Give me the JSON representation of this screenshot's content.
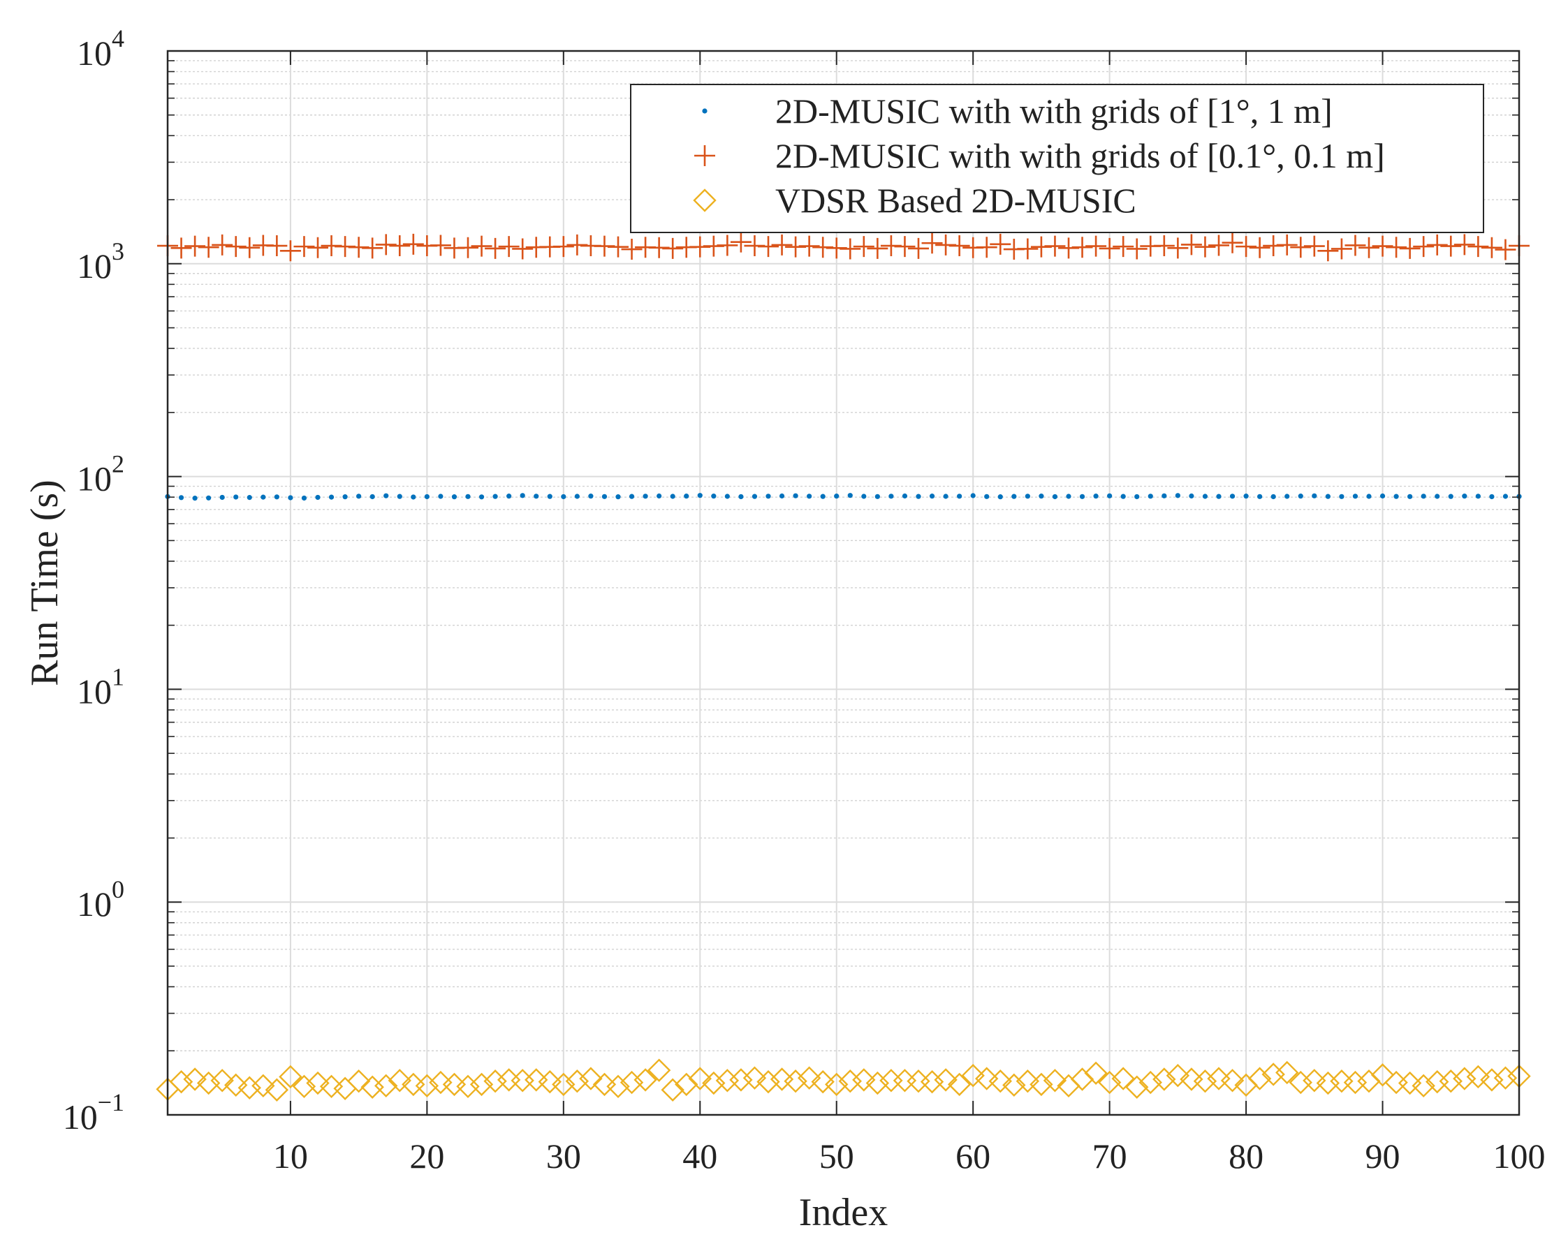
{
  "chart_data": {
    "type": "scatter",
    "xlabel": "Index",
    "ylabel": "Run Time (s)",
    "xlim": [
      1,
      100
    ],
    "ylim": [
      0.1,
      10000
    ],
    "yscale": "log",
    "grid": "on (major and minor)",
    "legend_placement": "top-right",
    "x_ticks": [
      {
        "value": 10,
        "label": "10"
      },
      {
        "value": 20,
        "label": "20"
      },
      {
        "value": 30,
        "label": "30"
      },
      {
        "value": 40,
        "label": "40"
      },
      {
        "value": 50,
        "label": "50"
      },
      {
        "value": 60,
        "label": "60"
      },
      {
        "value": 70,
        "label": "70"
      },
      {
        "value": 80,
        "label": "80"
      },
      {
        "value": 90,
        "label": "90"
      },
      {
        "value": 100,
        "label": "100"
      }
    ],
    "y_ticks": [
      {
        "value": 0.1,
        "base": "10",
        "exp": "−1"
      },
      {
        "value": 1,
        "base": "10",
        "exp": "0"
      },
      {
        "value": 10,
        "base": "10",
        "exp": "1"
      },
      {
        "value": 100,
        "base": "10",
        "exp": "2"
      },
      {
        "value": 1000,
        "base": "10",
        "exp": "3"
      },
      {
        "value": 10000,
        "base": "10",
        "exp": "4"
      }
    ],
    "series": [
      {
        "name": "2D-MUSIC with with grids of [1°, 1 m]",
        "marker": "dot",
        "color": "#0072bd",
        "values": [
          80.5,
          79.6,
          79.1,
          79.3,
          79.8,
          80.1,
          79.7,
          80.0,
          80.2,
          79.5,
          79.2,
          79.8,
          80.0,
          80.3,
          80.8,
          80.4,
          81.2,
          80.6,
          80.1,
          80.4,
          80.7,
          80.3,
          80.5,
          80.2,
          80.6,
          80.9,
          81.4,
          80.8,
          80.6,
          80.4,
          80.7,
          80.9,
          80.5,
          80.3,
          80.6,
          80.8,
          81.0,
          80.7,
          80.9,
          81.5,
          80.9,
          80.7,
          80.4,
          80.6,
          80.8,
          81.0,
          81.2,
          80.8,
          80.6,
          80.9,
          81.5,
          80.7,
          80.5,
          80.8,
          81.0,
          80.6,
          80.9,
          80.7,
          80.8,
          81.3,
          80.5,
          80.3,
          80.6,
          80.8,
          80.9,
          80.4,
          80.7,
          80.5,
          80.9,
          81.1,
          80.6,
          80.4,
          80.8,
          81.1,
          81.4,
          81.0,
          80.7,
          80.6,
          80.8,
          80.9,
          80.5,
          80.4,
          80.7,
          80.9,
          81.1,
          80.6,
          80.5,
          80.8,
          80.7,
          81.0,
          80.6,
          80.5,
          80.8,
          80.7,
          80.6,
          80.9,
          80.8,
          80.4,
          80.7,
          80.6
        ]
      },
      {
        "name": "2D-MUSIC with with grids of [0.1°, 0.1 m]",
        "marker": "plus",
        "color": "#d95319",
        "values": [
          1215,
          1185,
          1210,
          1195,
          1225,
          1205,
          1190,
          1220,
          1215,
          1150,
          1205,
          1190,
          1215,
          1205,
          1195,
          1185,
          1230,
          1215,
          1235,
          1215,
          1220,
          1185,
          1190,
          1210,
          1180,
          1205,
          1175,
          1195,
          1200,
          1205,
          1225,
          1215,
          1210,
          1200,
          1170,
          1195,
          1190,
          1180,
          1195,
          1200,
          1210,
          1220,
          1265,
          1215,
          1205,
          1225,
          1200,
          1210,
          1195,
          1185,
          1175,
          1205,
          1180,
          1215,
          1205,
          1180,
          1250,
          1225,
          1215,
          1190,
          1195,
          1235,
          1170,
          1175,
          1200,
          1210,
          1185,
          1195,
          1210,
          1180,
          1205,
          1175,
          1210,
          1215,
          1185,
          1230,
          1200,
          1220,
          1255,
          1205,
          1190,
          1215,
          1225,
          1195,
          1210,
          1150,
          1175,
          1220,
          1190,
          1210,
          1195,
          1180,
          1205,
          1225,
          1210,
          1230,
          1205,
          1190,
          1165,
          1215
        ]
      },
      {
        "name": "VDSR Based 2D-MUSIC",
        "marker": "diamond",
        "color": "#edb120",
        "values": [
          0.132,
          0.143,
          0.147,
          0.141,
          0.145,
          0.138,
          0.134,
          0.137,
          0.131,
          0.151,
          0.136,
          0.141,
          0.136,
          0.133,
          0.144,
          0.135,
          0.137,
          0.145,
          0.139,
          0.137,
          0.142,
          0.139,
          0.136,
          0.139,
          0.144,
          0.146,
          0.145,
          0.146,
          0.143,
          0.139,
          0.144,
          0.148,
          0.139,
          0.136,
          0.142,
          0.146,
          0.162,
          0.131,
          0.139,
          0.148,
          0.141,
          0.145,
          0.146,
          0.149,
          0.143,
          0.147,
          0.144,
          0.149,
          0.143,
          0.139,
          0.144,
          0.146,
          0.141,
          0.145,
          0.145,
          0.144,
          0.143,
          0.146,
          0.139,
          0.153,
          0.148,
          0.144,
          0.138,
          0.144,
          0.139,
          0.145,
          0.137,
          0.147,
          0.157,
          0.142,
          0.148,
          0.135,
          0.142,
          0.147,
          0.153,
          0.147,
          0.144,
          0.148,
          0.145,
          0.138,
          0.148,
          0.155,
          0.158,
          0.142,
          0.145,
          0.141,
          0.144,
          0.142,
          0.144,
          0.154,
          0.142,
          0.141,
          0.137,
          0.143,
          0.144,
          0.148,
          0.151,
          0.146,
          0.149,
          0.152
        ]
      }
    ]
  }
}
